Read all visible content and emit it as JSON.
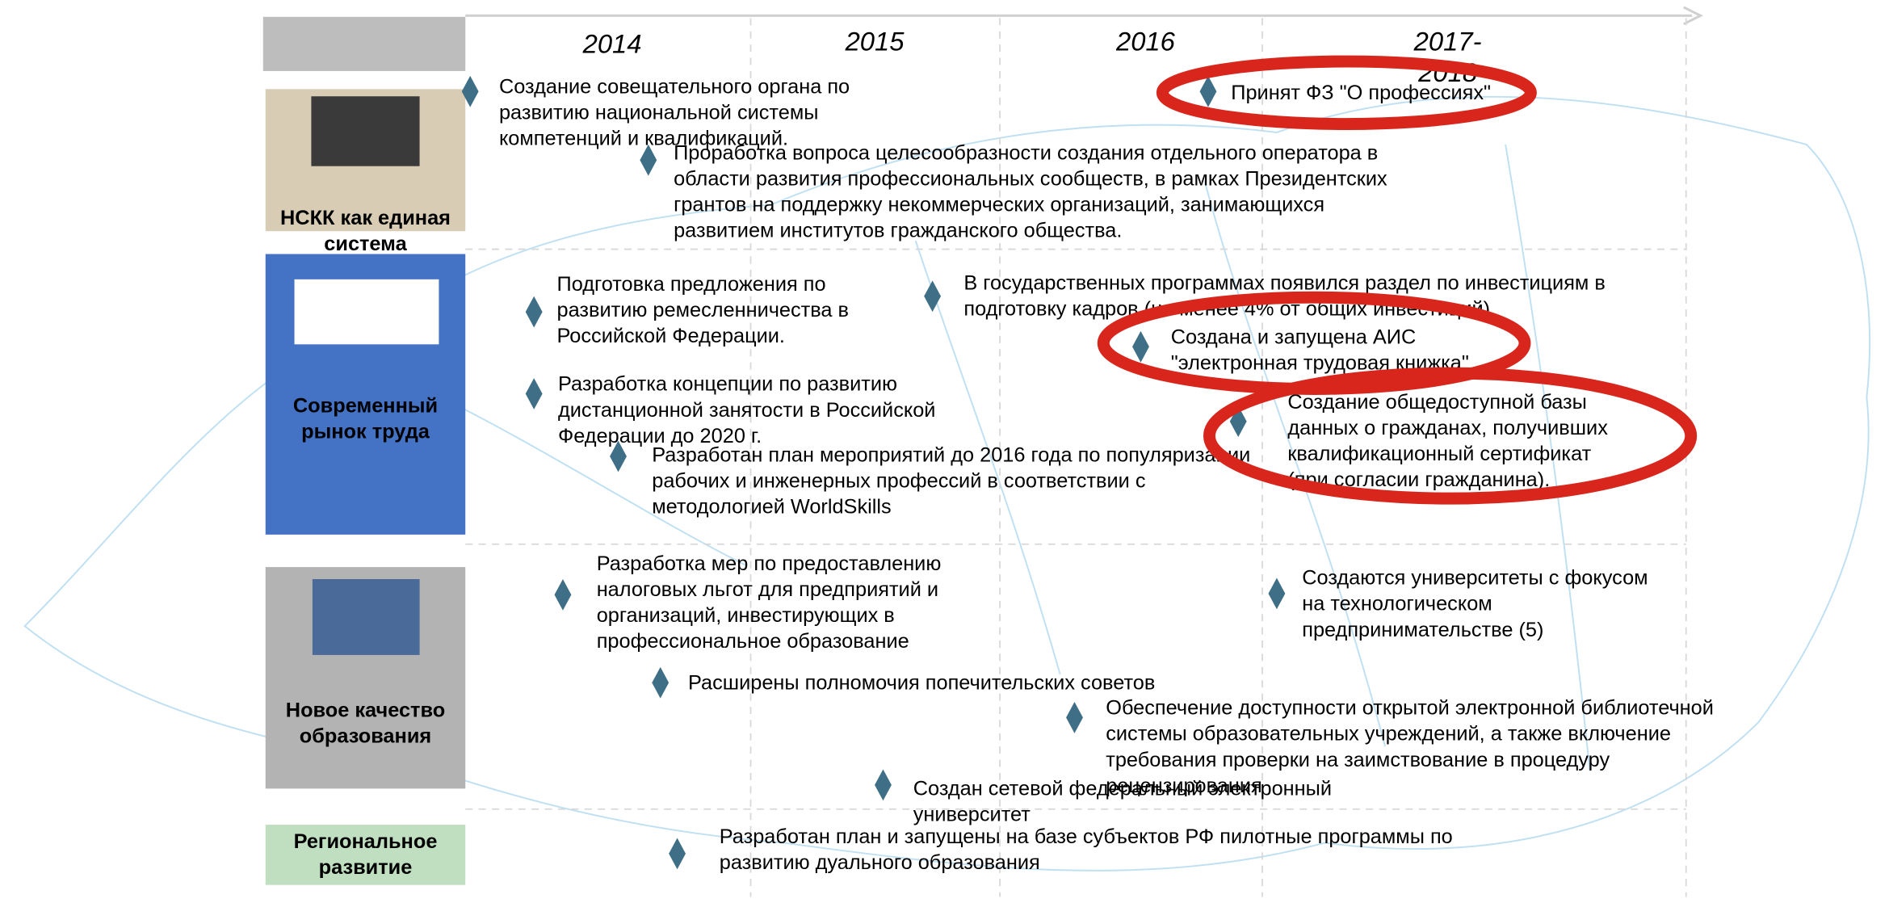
{
  "years": [
    [
      "2014"
    ],
    [
      "2015"
    ],
    [
      "2016"
    ],
    [
      "2017-",
      "2018"
    ]
  ],
  "rows": [
    {
      "label": [
        "НСКК как единая",
        "система"
      ]
    },
    {
      "label": [
        "Современный",
        "рынок труда"
      ]
    },
    {
      "label": [
        "Новое качество",
        "образования"
      ]
    },
    {
      "label": [
        "Региональное",
        "развитие"
      ]
    }
  ],
  "events": [
    {
      "lines": [
        "Создание совещательного органа по",
        "развитию национальной системы",
        "компетенций и квалификаций."
      ]
    },
    {
      "lines": [
        "Проработка вопроса целесообразности создания отдельного оператора в",
        "области развития профессиональных сообществ, в рамках Президентских",
        "грантов на  поддержку некоммерческих организаций, занимающихся",
        "развитием институтов гражданского общества."
      ]
    },
    {
      "lines": [
        "Принят ФЗ  \"О профессиях\""
      ]
    },
    {
      "lines": [
        "Подготовка предложения по",
        "развитию ремесленничества в",
        "Российской Федерации."
      ]
    },
    {
      "lines": [
        "В государственных программах появился раздел по инвестициям в",
        "подготовку кадров (не менее 4% от общих инвестиций)"
      ]
    },
    {
      "lines": [
        "Создана и запущена АИС",
        "\"электронная трудовая книжка\""
      ]
    },
    {
      "lines": [
        "Разработка концепции по развитию",
        "дистанционной занятости в Российской",
        "Федерации до 2020 г."
      ]
    },
    {
      "lines": [
        "Создание общедоступной базы",
        "данных о гражданах, получивших",
        "квалификационный сертификат",
        "(при согласии гражданина)."
      ]
    },
    {
      "lines": [
        "Разработан план мероприятий до 2016 года по популяризации",
        "рабочих и инженерных профессий в соответствии с",
        "методологией WorldSkills"
      ]
    },
    {
      "lines": [
        "Разработка мер по предоставлению",
        "налоговых льгот для предприятий и",
        "организаций, инвестирующих в",
        "профессиональное образование"
      ]
    },
    {
      "lines": [
        "Создаются университеты с фокусом",
        "на технологическом",
        "предпринимательстве (5)"
      ]
    },
    {
      "lines": [
        "Расширены полномочия попечительских советов"
      ]
    },
    {
      "lines": [
        "Обеспечение доступности открытой электронной библиотечной",
        "системы образовательных учреждений, а также включение",
        "требования проверки на заимствование в процедуру",
        "рецензирования"
      ]
    },
    {
      "lines": [
        "Создан сетевой федеральный электронный",
        "университет"
      ]
    },
    {
      "lines": [
        "Разработан план и запущены на базе субъектов РФ пилотные программы по",
        "развитию дуального образования"
      ]
    }
  ]
}
